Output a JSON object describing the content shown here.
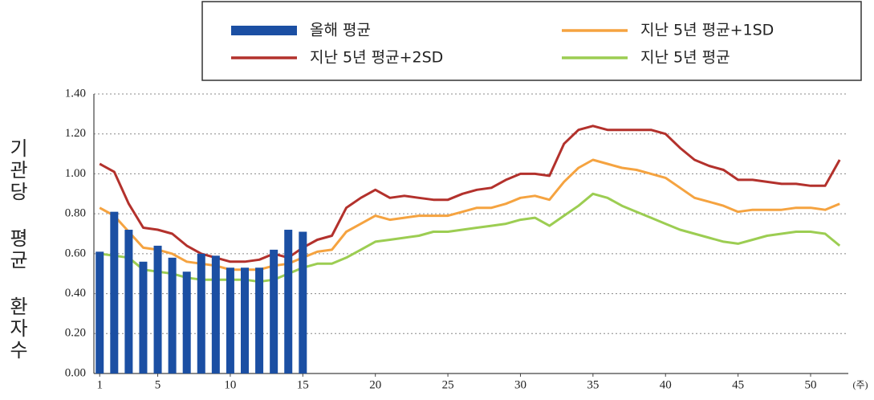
{
  "chart_data": {
    "type": "bar-line",
    "y_label": "기관당 평균 환자수",
    "x_label": "(주)",
    "x": [
      1,
      2,
      3,
      4,
      5,
      6,
      7,
      8,
      9,
      10,
      11,
      12,
      13,
      14,
      15,
      16,
      17,
      18,
      19,
      20,
      21,
      22,
      23,
      24,
      25,
      26,
      27,
      28,
      29,
      30,
      31,
      32,
      33,
      34,
      35,
      36,
      37,
      38,
      39,
      40,
      41,
      42,
      43,
      44,
      45,
      46,
      47,
      48,
      49,
      50,
      51,
      52
    ],
    "xlim": [
      0.6,
      52.6
    ],
    "xticks": [
      1,
      5,
      10,
      15,
      20,
      25,
      30,
      35,
      40,
      45,
      50
    ],
    "ylim": [
      0,
      1.4
    ],
    "yticks": [
      {
        "value": 0,
        "label": "0.00"
      },
      {
        "value": 0.2,
        "label": "0.20"
      },
      {
        "value": 0.4,
        "label": "0.40"
      },
      {
        "value": 0.6,
        "label": "0.60"
      },
      {
        "value": 0.8,
        "label": "0.80"
      },
      {
        "value": 1.0,
        "label": "1.00"
      },
      {
        "value": 1.2,
        "label": "1.20"
      },
      {
        "value": 1.4,
        "label": "1.40"
      }
    ],
    "grid": true,
    "legend": "top",
    "series": [
      {
        "name": "올해 평균",
        "type": "bar",
        "color": "#1b4fa3",
        "values": [
          0.61,
          0.81,
          0.72,
          0.56,
          0.64,
          0.58,
          0.51,
          0.6,
          0.59,
          0.53,
          0.53,
          0.53,
          0.62,
          0.72,
          0.71,
          null,
          null,
          null,
          null,
          null,
          null,
          null,
          null,
          null,
          null,
          null,
          null,
          null,
          null,
          null,
          null,
          null,
          null,
          null,
          null,
          null,
          null,
          null,
          null,
          null,
          null,
          null,
          null,
          null,
          null,
          null,
          null,
          null,
          null,
          null,
          null,
          null
        ]
      },
      {
        "name": "지난 5년 평균+2SD",
        "type": "line",
        "color": "#b3312c",
        "values": [
          1.05,
          1.01,
          0.85,
          0.73,
          0.72,
          0.7,
          0.64,
          0.6,
          0.58,
          0.56,
          0.56,
          0.57,
          0.6,
          0.58,
          0.63,
          0.67,
          0.69,
          0.83,
          0.88,
          0.92,
          0.88,
          0.89,
          0.88,
          0.87,
          0.87,
          0.9,
          0.92,
          0.93,
          0.97,
          1.0,
          1.0,
          0.99,
          1.15,
          1.22,
          1.24,
          1.22,
          1.22,
          1.22,
          1.22,
          1.2,
          1.13,
          1.07,
          1.04,
          1.02,
          0.97,
          0.97,
          0.96,
          0.95,
          0.95,
          0.94,
          0.94,
          1.07
        ]
      },
      {
        "name": "지난 5년 평균+1SD",
        "type": "line",
        "color": "#f5a340",
        "values": [
          0.83,
          0.79,
          0.71,
          0.63,
          0.62,
          0.6,
          0.56,
          0.55,
          0.54,
          0.52,
          0.52,
          0.52,
          0.54,
          0.55,
          0.58,
          0.61,
          0.62,
          0.71,
          0.75,
          0.79,
          0.77,
          0.78,
          0.79,
          0.79,
          0.79,
          0.81,
          0.83,
          0.83,
          0.85,
          0.88,
          0.89,
          0.87,
          0.96,
          1.03,
          1.07,
          1.05,
          1.03,
          1.02,
          1.0,
          0.98,
          0.93,
          0.88,
          0.86,
          0.84,
          0.81,
          0.82,
          0.82,
          0.82,
          0.83,
          0.83,
          0.82,
          0.85
        ]
      },
      {
        "name": "지난 5년 평균",
        "type": "line",
        "color": "#9ccd52",
        "values": [
          0.6,
          0.59,
          0.58,
          0.52,
          0.51,
          0.5,
          0.48,
          0.47,
          0.47,
          0.47,
          0.47,
          0.46,
          0.47,
          0.5,
          0.53,
          0.55,
          0.55,
          0.58,
          0.62,
          0.66,
          0.67,
          0.68,
          0.69,
          0.71,
          0.71,
          0.72,
          0.73,
          0.74,
          0.75,
          0.77,
          0.78,
          0.74,
          0.79,
          0.84,
          0.9,
          0.88,
          0.84,
          0.81,
          0.78,
          0.75,
          0.72,
          0.7,
          0.68,
          0.66,
          0.65,
          0.67,
          0.69,
          0.7,
          0.71,
          0.71,
          0.7,
          0.64
        ]
      }
    ]
  }
}
